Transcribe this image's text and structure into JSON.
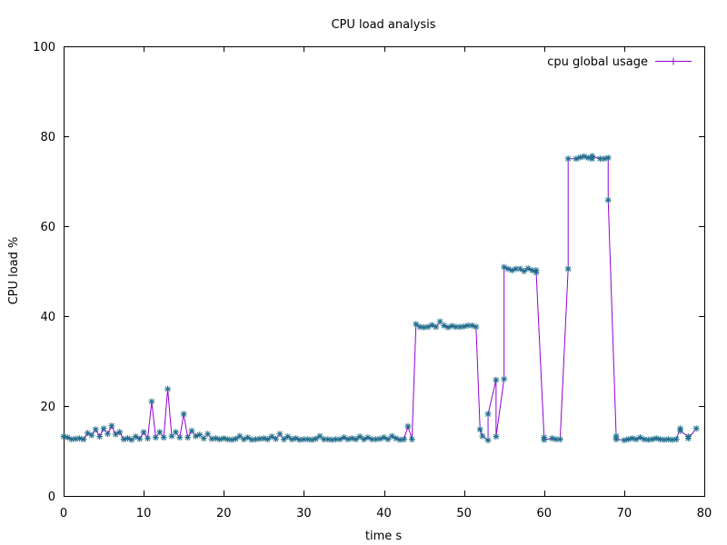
{
  "chart_data": {
    "type": "line",
    "title": "CPU load analysis",
    "xlabel": "time s",
    "ylabel": "CPU load %",
    "xlim": [
      0,
      80
    ],
    "ylim": [
      0,
      100
    ],
    "xticks": [
      0,
      10,
      20,
      30,
      40,
      50,
      60,
      70,
      80
    ],
    "yticks": [
      0,
      20,
      40,
      60,
      80,
      100
    ],
    "grid": false,
    "legend_position": "top-right",
    "series": [
      {
        "name": "cpu global usage",
        "line_color": "#9400d3",
        "marker_color": "#1f6e8c",
        "marker": "star",
        "points": [
          [
            0.0,
            13.2
          ],
          [
            0.5,
            13.0
          ],
          [
            1.0,
            12.6
          ],
          [
            1.5,
            12.7
          ],
          [
            2.0,
            12.8
          ],
          [
            2.5,
            12.6
          ],
          [
            3.0,
            14.0
          ],
          [
            3.5,
            13.5
          ],
          [
            4.0,
            14.8
          ],
          [
            4.5,
            13.2
          ],
          [
            5.0,
            15.0
          ],
          [
            5.5,
            13.8
          ],
          [
            6.0,
            15.6
          ],
          [
            6.5,
            13.7
          ],
          [
            7.0,
            14.2
          ],
          [
            7.5,
            12.6
          ],
          [
            8.0,
            12.8
          ],
          [
            8.5,
            12.5
          ],
          [
            9.0,
            13.2
          ],
          [
            9.5,
            12.7
          ],
          [
            10.0,
            14.2
          ],
          [
            10.5,
            12.8
          ],
          [
            11.0,
            21.0
          ],
          [
            11.5,
            13.0
          ],
          [
            12.0,
            14.2
          ],
          [
            12.5,
            13.0
          ],
          [
            13.0,
            23.8
          ],
          [
            13.5,
            13.3
          ],
          [
            14.0,
            14.2
          ],
          [
            14.5,
            13.0
          ],
          [
            15.0,
            18.2
          ],
          [
            15.5,
            13.0
          ],
          [
            16.0,
            14.5
          ],
          [
            16.5,
            13.3
          ],
          [
            17.0,
            13.6
          ],
          [
            17.5,
            12.8
          ],
          [
            18.0,
            13.8
          ],
          [
            18.5,
            12.7
          ],
          [
            19.0,
            12.8
          ],
          [
            19.5,
            12.6
          ],
          [
            20.0,
            12.8
          ],
          [
            20.5,
            12.6
          ],
          [
            21.0,
            12.5
          ],
          [
            21.5,
            12.7
          ],
          [
            22.0,
            13.3
          ],
          [
            22.5,
            12.6
          ],
          [
            23.0,
            13.0
          ],
          [
            23.5,
            12.5
          ],
          [
            24.0,
            12.6
          ],
          [
            24.5,
            12.7
          ],
          [
            25.0,
            12.8
          ],
          [
            25.5,
            12.6
          ],
          [
            26.0,
            13.2
          ],
          [
            26.5,
            12.7
          ],
          [
            27.0,
            13.8
          ],
          [
            27.5,
            12.6
          ],
          [
            28.0,
            13.2
          ],
          [
            28.5,
            12.6
          ],
          [
            29.0,
            12.8
          ],
          [
            29.5,
            12.5
          ],
          [
            30.0,
            12.6
          ],
          [
            30.5,
            12.6
          ],
          [
            31.0,
            12.5
          ],
          [
            31.5,
            12.7
          ],
          [
            32.0,
            13.3
          ],
          [
            32.5,
            12.6
          ],
          [
            33.0,
            12.6
          ],
          [
            33.5,
            12.5
          ],
          [
            34.0,
            12.6
          ],
          [
            34.5,
            12.6
          ],
          [
            35.0,
            13.0
          ],
          [
            35.5,
            12.6
          ],
          [
            36.0,
            12.8
          ],
          [
            36.5,
            12.6
          ],
          [
            37.0,
            13.2
          ],
          [
            37.5,
            12.6
          ],
          [
            38.0,
            13.0
          ],
          [
            38.5,
            12.6
          ],
          [
            39.0,
            12.6
          ],
          [
            39.5,
            12.7
          ],
          [
            40.0,
            13.0
          ],
          [
            40.5,
            12.6
          ],
          [
            41.0,
            13.3
          ],
          [
            41.5,
            12.8
          ],
          [
            42.0,
            12.5
          ],
          [
            42.5,
            12.6
          ],
          [
            43.0,
            15.5
          ],
          [
            43.5,
            12.6
          ],
          [
            44.0,
            38.2
          ],
          [
            44.5,
            37.6
          ],
          [
            45.0,
            37.5
          ],
          [
            45.5,
            37.6
          ],
          [
            46.0,
            38.0
          ],
          [
            46.5,
            37.6
          ],
          [
            47.0,
            38.8
          ],
          [
            47.5,
            37.9
          ],
          [
            48.0,
            37.5
          ],
          [
            48.5,
            37.8
          ],
          [
            49.0,
            37.6
          ],
          [
            49.5,
            37.6
          ],
          [
            50.0,
            37.7
          ],
          [
            50.5,
            37.9
          ],
          [
            51.0,
            37.9
          ],
          [
            51.5,
            37.6
          ],
          [
            52.0,
            14.8
          ],
          [
            52.3,
            13.3
          ],
          [
            53.0,
            12.4
          ],
          [
            53.0,
            18.2
          ],
          [
            54.0,
            25.8
          ],
          [
            54.0,
            13.2
          ],
          [
            55.0,
            26.0
          ],
          [
            55.0,
            50.9
          ],
          [
            55.5,
            50.5
          ],
          [
            56.0,
            50.2
          ],
          [
            56.5,
            50.5
          ],
          [
            57.0,
            50.5
          ],
          [
            57.5,
            50.0
          ],
          [
            58.0,
            50.6
          ],
          [
            58.5,
            50.2
          ],
          [
            59.0,
            49.7
          ],
          [
            59.0,
            50.2
          ],
          [
            60.0,
            13.0
          ],
          [
            60.0,
            12.5
          ],
          [
            61.0,
            12.8
          ],
          [
            61.5,
            12.6
          ],
          [
            62.0,
            12.6
          ],
          [
            63.0,
            50.5
          ],
          [
            63.0,
            75.0
          ],
          [
            64.0,
            75.0
          ],
          [
            64.5,
            75.3
          ],
          [
            65.0,
            75.5
          ],
          [
            65.5,
            75.2
          ],
          [
            66.0,
            75.0
          ],
          [
            66.0,
            75.6
          ],
          [
            67.0,
            75.0
          ],
          [
            67.5,
            75.0
          ],
          [
            68.0,
            75.2
          ],
          [
            68.0,
            65.8
          ],
          [
            69.0,
            13.3
          ],
          [
            69.0,
            12.6
          ],
          [
            70.0,
            12.4
          ],
          [
            70.5,
            12.6
          ],
          [
            71.0,
            12.8
          ],
          [
            71.5,
            12.6
          ],
          [
            72.0,
            13.0
          ],
          [
            72.5,
            12.6
          ],
          [
            73.0,
            12.5
          ],
          [
            73.5,
            12.6
          ],
          [
            74.0,
            12.8
          ],
          [
            74.5,
            12.6
          ],
          [
            75.0,
            12.5
          ],
          [
            75.5,
            12.6
          ],
          [
            76.0,
            12.5
          ],
          [
            76.5,
            12.6
          ],
          [
            77.0,
            15.0
          ],
          [
            77.0,
            14.5
          ],
          [
            78.0,
            13.2
          ],
          [
            78.0,
            12.8
          ],
          [
            79.0,
            15.0
          ]
        ]
      }
    ]
  }
}
